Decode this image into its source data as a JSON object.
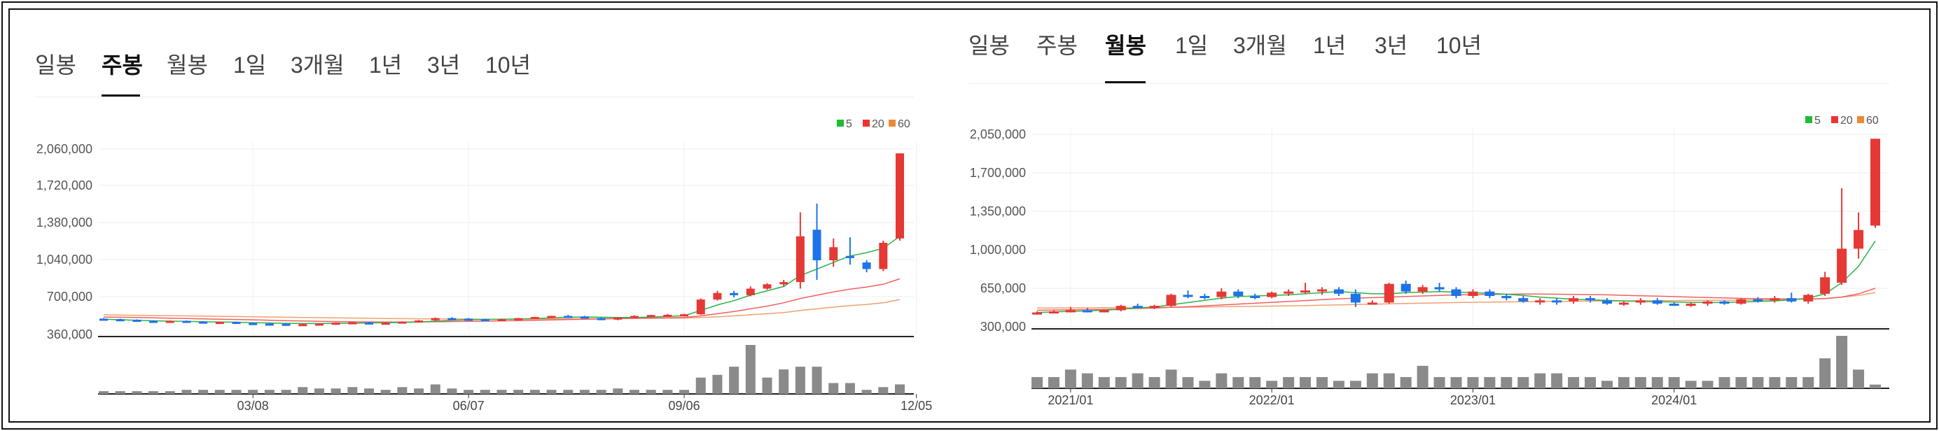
{
  "charts": [
    {
      "tabs": [
        "일봉",
        "주봉",
        "월봉",
        "1일",
        "3개월",
        "1년",
        "3년",
        "10년"
      ],
      "active_tab": 1,
      "legend": [
        {
          "label": "5",
          "color": "#22bb33"
        },
        {
          "label": "20",
          "color": "#ee3333"
        },
        {
          "label": "60",
          "color": "#ee8833"
        }
      ],
      "y_ticks": [
        "2,060,000",
        "1,720,000",
        "1,380,000",
        "1,040,000",
        "700,000",
        "360,000"
      ],
      "x_ticks": [
        "03/08",
        "06/07",
        "09/06",
        "12/05"
      ]
    },
    {
      "tabs": [
        "일봉",
        "주봉",
        "월봉",
        "1일",
        "3개월",
        "1년",
        "3년",
        "10년"
      ],
      "active_tab": 2,
      "legend": [
        {
          "label": "5",
          "color": "#22bb33"
        },
        {
          "label": "20",
          "color": "#ee3333"
        },
        {
          "label": "60",
          "color": "#ee8833"
        }
      ],
      "y_ticks": [
        "2,050,000",
        "1,700,000",
        "1,350,000",
        "1,000,000",
        "650,000",
        "300,000"
      ],
      "x_ticks": [
        "2021/01",
        "2022/01",
        "2023/01",
        "2024/01"
      ]
    }
  ],
  "chart_data": [
    {
      "type": "candlestick",
      "period": "weekly",
      "ylim": [
        360000,
        2060000
      ],
      "x_tick_index": [
        9,
        22,
        35,
        49
      ],
      "candles": [
        [
          505000,
          510000,
          495000,
          500000
        ],
        [
          500000,
          505000,
          490000,
          495000
        ],
        [
          495000,
          498000,
          482000,
          485000
        ],
        [
          485000,
          490000,
          475000,
          480000
        ],
        [
          482000,
          488000,
          475000,
          485000
        ],
        [
          485000,
          488000,
          472000,
          478000
        ],
        [
          478000,
          482000,
          468000,
          470000
        ],
        [
          472000,
          478000,
          465000,
          475000
        ],
        [
          475000,
          478000,
          462000,
          465000
        ],
        [
          465000,
          470000,
          455000,
          460000
        ],
        [
          460000,
          466000,
          452000,
          458000
        ],
        [
          458000,
          462000,
          448000,
          452000
        ],
        [
          452000,
          458000,
          445000,
          455000
        ],
        [
          455000,
          462000,
          450000,
          460000
        ],
        [
          460000,
          470000,
          455000,
          468000
        ],
        [
          468000,
          474000,
          460000,
          472000
        ],
        [
          470000,
          476000,
          462000,
          465000
        ],
        [
          465000,
          472000,
          458000,
          468000
        ],
        [
          468000,
          480000,
          462000,
          478000
        ],
        [
          478000,
          492000,
          472000,
          488000
        ],
        [
          490000,
          515000,
          482000,
          510000
        ],
        [
          510000,
          518000,
          498000,
          505000
        ],
        [
          505000,
          510000,
          495000,
          500000
        ],
        [
          500000,
          505000,
          488000,
          495000
        ],
        [
          495000,
          505000,
          490000,
          500000
        ],
        [
          500000,
          512000,
          495000,
          510000
        ],
        [
          508000,
          522000,
          502000,
          520000
        ],
        [
          520000,
          532000,
          512000,
          530000
        ],
        [
          530000,
          538000,
          520000,
          525000
        ],
        [
          525000,
          530000,
          508000,
          512000
        ],
        [
          510000,
          515000,
          495000,
          500000
        ],
        [
          500000,
          520000,
          490000,
          515000
        ],
        [
          515000,
          535000,
          508000,
          530000
        ],
        [
          530000,
          540000,
          522000,
          538000
        ],
        [
          535000,
          548000,
          530000,
          540000
        ],
        [
          540000,
          550000,
          532000,
          545000
        ],
        [
          545000,
          690000,
          540000,
          680000
        ],
        [
          680000,
          760000,
          670000,
          740000
        ],
        [
          740000,
          760000,
          700000,
          720000
        ],
        [
          720000,
          800000,
          710000,
          780000
        ],
        [
          780000,
          830000,
          770000,
          820000
        ],
        [
          820000,
          860000,
          800000,
          840000
        ],
        [
          840000,
          1480000,
          780000,
          1260000
        ],
        [
          1320000,
          1560000,
          860000,
          1040000
        ],
        [
          1040000,
          1240000,
          980000,
          1160000
        ],
        [
          1080000,
          1250000,
          1000000,
          1060000
        ],
        [
          1020000,
          1040000,
          930000,
          960000
        ],
        [
          960000,
          1220000,
          940000,
          1200000
        ],
        [
          1240000,
          2020000,
          1220000,
          2020000
        ]
      ],
      "ma": {
        "5": [
          500000,
          495000,
          490000,
          485000,
          482000,
          480000,
          476000,
          474000,
          472000,
          468000,
          465000,
          462000,
          460000,
          460000,
          461000,
          463000,
          466000,
          468000,
          470000,
          474000,
          482000,
          490000,
          495000,
          498000,
          500000,
          502000,
          506000,
          512000,
          518000,
          520000,
          518000,
          515000,
          516000,
          520000,
          526000,
          532000,
          580000,
          630000,
          670000,
          720000,
          760000,
          800000,
          900000,
          960000,
          1020000,
          1080000,
          1110000,
          1150000,
          1260000
        ],
        "20": [
          520000,
          518000,
          515000,
          512000,
          509000,
          506000,
          503000,
          500000,
          497000,
          494000,
          490000,
          486000,
          483000,
          480000,
          478000,
          476000,
          475000,
          474000,
          474000,
          475000,
          476000,
          478000,
          480000,
          482000,
          485000,
          487000,
          490000,
          493000,
          496000,
          499000,
          502000,
          505000,
          508000,
          510000,
          513000,
          516000,
          530000,
          550000,
          570000,
          595000,
          620000,
          650000,
          690000,
          720000,
          750000,
          775000,
          795000,
          820000,
          870000
        ],
        "60": [
          540000,
          538000,
          536000,
          534000,
          532000,
          530000,
          528000,
          526000,
          524000,
          522000,
          520000,
          518000,
          516000,
          514000,
          512000,
          510000,
          508000,
          506000,
          505000,
          504000,
          503000,
          502000,
          501000,
          500000,
          500000,
          500000,
          501000,
          502000,
          503000,
          504000,
          505000,
          506000,
          507000,
          508000,
          509000,
          510000,
          515000,
          522000,
          530000,
          540000,
          550000,
          560000,
          580000,
          595000,
          610000,
          625000,
          635000,
          650000,
          680000
        ]
      },
      "volume": [
        2,
        2,
        2,
        2,
        2,
        3,
        3,
        3,
        3,
        3,
        3,
        3,
        5,
        4,
        4,
        5,
        4,
        3,
        5,
        4,
        7,
        4,
        3,
        3,
        3,
        3,
        3,
        3,
        3,
        3,
        3,
        4,
        3,
        3,
        3,
        3,
        12,
        14,
        20,
        36,
        12,
        18,
        20,
        20,
        8,
        8,
        3,
        5,
        7
      ]
    },
    {
      "type": "candlestick",
      "period": "monthly",
      "ylim": [
        300000,
        2050000
      ],
      "x_tick_index": [
        2,
        14,
        26,
        38
      ],
      "candles": [
        [
          420000,
          440000,
          410000,
          430000
        ],
        [
          430000,
          450000,
          420000,
          440000
        ],
        [
          440000,
          480000,
          430000,
          450000
        ],
        [
          450000,
          470000,
          430000,
          440000
        ],
        [
          440000,
          460000,
          430000,
          450000
        ],
        [
          450000,
          500000,
          440000,
          490000
        ],
        [
          490000,
          510000,
          470000,
          480000
        ],
        [
          480000,
          500000,
          460000,
          490000
        ],
        [
          490000,
          600000,
          480000,
          590000
        ],
        [
          590000,
          630000,
          560000,
          580000
        ],
        [
          580000,
          600000,
          550000,
          570000
        ],
        [
          570000,
          650000,
          550000,
          620000
        ],
        [
          620000,
          640000,
          560000,
          580000
        ],
        [
          580000,
          600000,
          550000,
          570000
        ],
        [
          570000,
          620000,
          560000,
          610000
        ],
        [
          610000,
          640000,
          580000,
          620000
        ],
        [
          620000,
          700000,
          600000,
          630000
        ],
        [
          630000,
          660000,
          590000,
          640000
        ],
        [
          640000,
          660000,
          580000,
          600000
        ],
        [
          600000,
          640000,
          480000,
          520000
        ],
        [
          520000,
          540000,
          500000,
          520000
        ],
        [
          520000,
          700000,
          510000,
          690000
        ],
        [
          690000,
          720000,
          600000,
          620000
        ],
        [
          620000,
          680000,
          600000,
          660000
        ],
        [
          660000,
          700000,
          620000,
          640000
        ],
        [
          640000,
          660000,
          560000,
          580000
        ],
        [
          580000,
          640000,
          560000,
          620000
        ],
        [
          620000,
          640000,
          560000,
          580000
        ],
        [
          580000,
          600000,
          540000,
          560000
        ],
        [
          560000,
          580000,
          520000,
          530000
        ],
        [
          530000,
          560000,
          500000,
          540000
        ],
        [
          540000,
          560000,
          500000,
          530000
        ],
        [
          530000,
          580000,
          510000,
          560000
        ],
        [
          560000,
          580000,
          520000,
          540000
        ],
        [
          540000,
          560000,
          500000,
          510000
        ],
        [
          510000,
          530000,
          490000,
          520000
        ],
        [
          520000,
          560000,
          500000,
          540000
        ],
        [
          540000,
          560000,
          500000,
          510000
        ],
        [
          510000,
          520000,
          490000,
          500000
        ],
        [
          500000,
          520000,
          480000,
          510000
        ],
        [
          510000,
          540000,
          490000,
          530000
        ],
        [
          530000,
          540000,
          500000,
          510000
        ],
        [
          510000,
          560000,
          500000,
          550000
        ],
        [
          550000,
          570000,
          520000,
          540000
        ],
        [
          540000,
          580000,
          520000,
          560000
        ],
        [
          560000,
          610000,
          520000,
          530000
        ],
        [
          530000,
          600000,
          510000,
          590000
        ],
        [
          600000,
          800000,
          580000,
          750000
        ],
        [
          700000,
          1560000,
          680000,
          1010000
        ],
        [
          1010000,
          1340000,
          920000,
          1180000
        ],
        [
          1220000,
          2010000,
          1200000,
          2010000
        ]
      ],
      "ma": {
        "5": [
          430000,
          435000,
          440000,
          445000,
          450000,
          460000,
          470000,
          480000,
          500000,
          520000,
          540000,
          560000,
          575000,
          580000,
          585000,
          590000,
          600000,
          610000,
          620000,
          610000,
          600000,
          600000,
          610000,
          615000,
          620000,
          615000,
          610000,
          605000,
          595000,
          585000,
          570000,
          560000,
          550000,
          545000,
          540000,
          535000,
          530000,
          528000,
          525000,
          522000,
          520000,
          520000,
          525000,
          530000,
          535000,
          545000,
          560000,
          600000,
          700000,
          850000,
          1080000
        ],
        "20": [
          450000,
          452000,
          454000,
          456000,
          458000,
          462000,
          466000,
          470000,
          476000,
          482000,
          490000,
          498000,
          506000,
          514000,
          522000,
          530000,
          538000,
          546000,
          554000,
          560000,
          565000,
          570000,
          575000,
          580000,
          585000,
          590000,
          592000,
          594000,
          596000,
          598000,
          598000,
          596000,
          594000,
          592000,
          590000,
          586000,
          582000,
          578000,
          574000,
          570000,
          566000,
          562000,
          558000,
          555000,
          553000,
          552000,
          552000,
          555000,
          570000,
          600000,
          650000
        ],
        "60": [
          470000,
          470000,
          471000,
          472000,
          473000,
          474000,
          475000,
          476000,
          477000,
          478000,
          480000,
          482000,
          484000,
          486000,
          488000,
          490000,
          493000,
          496000,
          499000,
          502000,
          505000,
          508000,
          511000,
          514000,
          517000,
          520000,
          522000,
          524000,
          526000,
          528000,
          530000,
          531000,
          532000,
          533000,
          534000,
          535000,
          536000,
          537000,
          538000,
          539000,
          540000,
          541000,
          542000,
          543000,
          545000,
          548000,
          552000,
          558000,
          570000,
          585000,
          610000
        ]
      },
      "volume": [
        3,
        3,
        5,
        4,
        3,
        3,
        4,
        3,
        5,
        3,
        2,
        4,
        3,
        3,
        2,
        3,
        3,
        3,
        2,
        2,
        4,
        4,
        3,
        6,
        3,
        3,
        3,
        3,
        3,
        3,
        4,
        4,
        3,
        3,
        2,
        3,
        3,
        3,
        3,
        2,
        2,
        3,
        3,
        3,
        3,
        3,
        3,
        8,
        14,
        5,
        1
      ]
    }
  ]
}
